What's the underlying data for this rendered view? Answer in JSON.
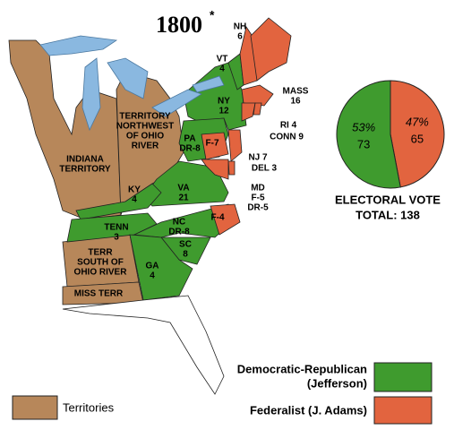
{
  "title": "1800",
  "title_mark": "*",
  "labels": [
    {
      "lines": [
        "VT",
        4
      ]
    },
    {
      "lines": [
        "NH",
        6
      ]
    },
    {
      "lines": [
        "MASS",
        16
      ]
    },
    {
      "lines": [
        "NY",
        12
      ]
    },
    {
      "lines": [
        "RI 4"
      ]
    },
    {
      "lines": [
        "CONN 9"
      ]
    },
    {
      "lines": [
        "PA",
        "DR-8"
      ]
    },
    {
      "lines": [
        "F-7"
      ]
    },
    {
      "lines": [
        "NJ 7"
      ]
    },
    {
      "lines": [
        "DEL 3"
      ]
    },
    {
      "lines": [
        "MD",
        "F-5",
        "DR-5"
      ]
    },
    {
      "lines": [
        "VA",
        21
      ]
    },
    {
      "lines": [
        "KY",
        4
      ]
    },
    {
      "lines": [
        "TENN",
        3
      ]
    },
    {
      "lines": [
        "NC",
        "DR-8"
      ]
    },
    {
      "lines": [
        "F-4"
      ]
    },
    {
      "lines": [
        "SC",
        8
      ]
    },
    {
      "lines": [
        "GA",
        4
      ]
    },
    {
      "lines": [
        "INDIANA",
        "TERRITORY"
      ]
    },
    {
      "lines": [
        "TERRITORY",
        "NORTHWEST",
        "OF OHIO",
        "RIVER"
      ]
    },
    {
      "lines": [
        "TERR",
        "SOUTH OF",
        "OHIO RIVER"
      ]
    },
    {
      "lines": [
        "MISS TERR"
      ]
    }
  ],
  "pie": {
    "values": [
      53,
      47
    ],
    "value_labels": [
      "53%",
      "47%"
    ],
    "votes": [
      73,
      65
    ],
    "colors": [
      "#3f9b2e",
      "#e2643f"
    ]
  },
  "electoral_vote": "ELECTORAL  VOTE",
  "total": "TOTAL: 138",
  "legend": [
    {
      "label": "Democratic-Republican",
      "sub": "(Jefferson)",
      "color": "#3f9b2e"
    },
    {
      "label": "Federalist (J. Adams)",
      "color": "#e2643f"
    },
    {
      "label": "Territories",
      "color": "#b7875a"
    }
  ]
}
